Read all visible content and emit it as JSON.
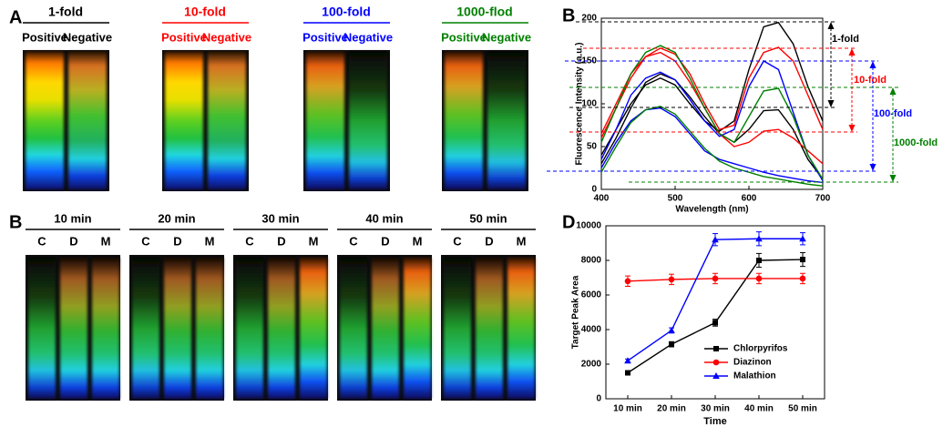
{
  "panels": [
    {
      "label": "A",
      "groups": [
        {
          "title": "1-fold",
          "color": "#000000",
          "lanes": [
            "Positive",
            "Negative"
          ]
        },
        {
          "title": "10-fold",
          "color": "#ff0000",
          "lanes": [
            "Positive",
            "Negative"
          ]
        },
        {
          "title": "100-fold",
          "color": "#0000ff",
          "lanes": [
            "Positive",
            "Negative"
          ]
        },
        {
          "title": "1000-flod",
          "color": "#008000",
          "lanes": [
            "Positive",
            "Negative"
          ]
        }
      ]
    },
    {
      "label": "B",
      "groups": [
        {
          "title": "10 min",
          "lanes": [
            "C",
            "D",
            "M"
          ]
        },
        {
          "title": "20 min",
          "lanes": [
            "C",
            "D",
            "M"
          ]
        },
        {
          "title": "30 min",
          "lanes": [
            "C",
            "D",
            "M"
          ]
        },
        {
          "title": "40 min",
          "lanes": [
            "C",
            "D",
            "M"
          ]
        },
        {
          "title": "50 min",
          "lanes": [
            "C",
            "D",
            "M"
          ]
        }
      ]
    }
  ],
  "chart_data": [
    {
      "type": "line",
      "label": "B",
      "x": [
        400,
        420,
        440,
        460,
        480,
        500,
        520,
        540,
        560,
        580,
        600,
        620,
        640,
        660,
        680,
        700
      ],
      "series": [
        {
          "color": "#000000",
          "values": [
            40,
            70,
            100,
            122,
            130,
            122,
            100,
            80,
            68,
            80,
            140,
            190,
            195,
            170,
            120,
            80
          ]
        },
        {
          "color": "#000000",
          "values": [
            30,
            60,
            95,
            125,
            135,
            128,
            108,
            85,
            65,
            55,
            70,
            92,
            93,
            70,
            35,
            12
          ]
        },
        {
          "color": "#ff0000",
          "values": [
            60,
            95,
            130,
            155,
            165,
            158,
            135,
            100,
            70,
            75,
            130,
            160,
            166,
            150,
            110,
            70
          ]
        },
        {
          "color": "#ff0000",
          "values": [
            65,
            100,
            135,
            155,
            160,
            150,
            125,
            95,
            65,
            50,
            55,
            68,
            70,
            60,
            45,
            30
          ]
        },
        {
          "color": "#0000ff",
          "values": [
            35,
            70,
            110,
            130,
            137,
            128,
            105,
            80,
            62,
            70,
            120,
            150,
            140,
            90,
            40,
            10
          ]
        },
        {
          "color": "#0000ff",
          "values": [
            25,
            55,
            80,
            93,
            95,
            85,
            65,
            45,
            35,
            30,
            25,
            20,
            16,
            13,
            10,
            8
          ]
        },
        {
          "color": "#008000",
          "values": [
            55,
            95,
            135,
            160,
            168,
            160,
            130,
            95,
            65,
            55,
            85,
            115,
            118,
            85,
            40,
            12
          ]
        },
        {
          "color": "#008000",
          "values": [
            20,
            50,
            78,
            93,
            97,
            88,
            68,
            48,
            33,
            25,
            20,
            15,
            12,
            9,
            6,
            4
          ]
        }
      ],
      "xlim": [
        400,
        700
      ],
      "ylim": [
        0,
        200
      ],
      "xticks": [
        400,
        500,
        600,
        700
      ],
      "yticks": [
        0,
        50,
        100,
        150,
        200
      ],
      "x_label": "Wavelength (nm)",
      "y_label": "Fluorescence Intensity (a.u.)",
      "annotations": [
        {
          "text": "1-fold",
          "color": "#000000"
        },
        {
          "text": "10-fold",
          "color": "#ff0000"
        },
        {
          "text": "100-fold",
          "color": "#0000ff"
        },
        {
          "text": "1000-fold",
          "color": "#008000"
        }
      ]
    },
    {
      "type": "line",
      "label": "D",
      "categories": [
        "10 min",
        "20 min",
        "30 min",
        "40 min",
        "50 min"
      ],
      "series": [
        {
          "name": "Chlorpyrifos",
          "color": "#000000",
          "marker": "square",
          "values": [
            1500,
            3150,
            4400,
            8000,
            8050
          ],
          "errors": [
            100,
            150,
            200,
            400,
            400
          ]
        },
        {
          "name": "Diazinon",
          "color": "#ff0000",
          "marker": "circle",
          "values": [
            6800,
            6900,
            6950,
            6950,
            6950
          ],
          "errors": [
            300,
            300,
            300,
            300,
            300
          ]
        },
        {
          "name": "Malathion",
          "color": "#0000ff",
          "marker": "triangle",
          "values": [
            2200,
            3950,
            9200,
            9250,
            9250
          ],
          "errors": [
            100,
            150,
            350,
            400,
            350
          ]
        }
      ],
      "ylim": [
        0,
        10000
      ],
      "yticks": [
        0,
        2000,
        4000,
        6000,
        8000,
        10000
      ],
      "x_label": "Time",
      "y_label": "Target Peak Area",
      "legend": "lower right"
    }
  ]
}
